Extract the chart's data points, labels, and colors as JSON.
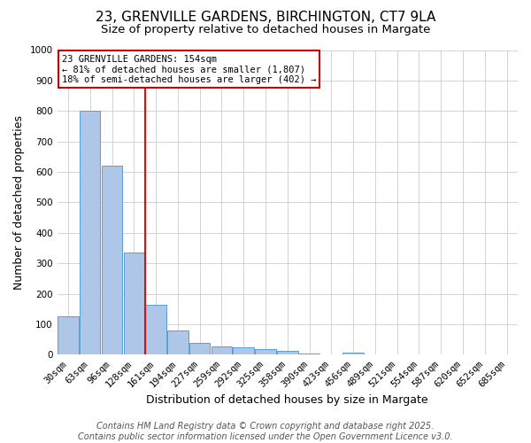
{
  "title": "23, GRENVILLE GARDENS, BIRCHINGTON, CT7 9LA",
  "subtitle": "Size of property relative to detached houses in Margate",
  "xlabel": "Distribution of detached houses by size in Margate",
  "ylabel": "Number of detached properties",
  "bar_color": "#aec6e8",
  "bar_edge_color": "#5a9fd4",
  "categories": [
    "30sqm",
    "63sqm",
    "96sqm",
    "128sqm",
    "161sqm",
    "194sqm",
    "227sqm",
    "259sqm",
    "292sqm",
    "325sqm",
    "358sqm",
    "390sqm",
    "423sqm",
    "456sqm",
    "489sqm",
    "521sqm",
    "554sqm",
    "587sqm",
    "620sqm",
    "652sqm",
    "685sqm"
  ],
  "values": [
    125,
    800,
    620,
    335,
    165,
    80,
    40,
    28,
    25,
    18,
    13,
    5,
    0,
    8,
    0,
    0,
    0,
    0,
    0,
    0,
    0
  ],
  "ylim": [
    0,
    1000
  ],
  "yticks": [
    0,
    100,
    200,
    300,
    400,
    500,
    600,
    700,
    800,
    900,
    1000
  ],
  "red_line_index": 4,
  "annotation_line1": "23 GRENVILLE GARDENS: 154sqm",
  "annotation_line2": "← 81% of detached houses are smaller (1,807)",
  "annotation_line3": "18% of semi-detached houses are larger (402) →",
  "annotation_box_color": "#ffffff",
  "annotation_border_color": "#cc0000",
  "footer_line1": "Contains HM Land Registry data © Crown copyright and database right 2025.",
  "footer_line2": "Contains public sector information licensed under the Open Government Licence v3.0.",
  "background_color": "#ffffff",
  "grid_color": "#cccccc",
  "title_fontsize": 11,
  "subtitle_fontsize": 9.5,
  "axis_label_fontsize": 9,
  "tick_fontsize": 7.5,
  "annotation_fontsize": 7.5,
  "footer_fontsize": 7
}
